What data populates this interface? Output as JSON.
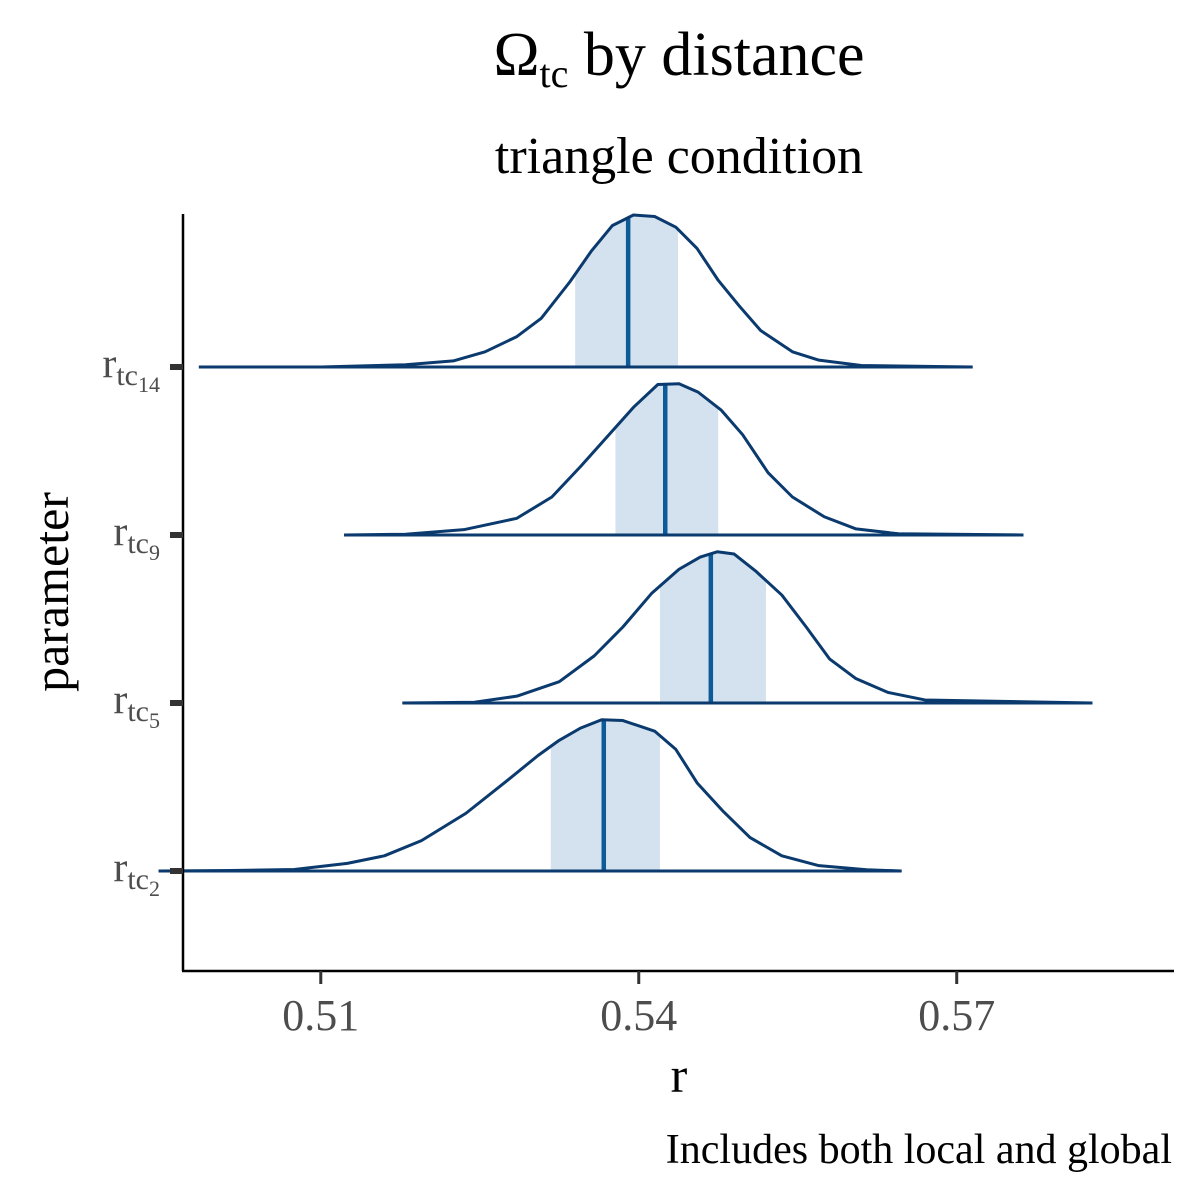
{
  "chart_data": {
    "type": "area",
    "title": {
      "main": "Ω",
      "sub": "tc",
      "rest": " by distance"
    },
    "subtitle": "triangle condition",
    "xlabel": "r",
    "ylabel": "parameter",
    "caption": "Includes both local and global",
    "x_ticks": [
      0.51,
      0.54,
      0.57
    ],
    "x_tick_labels": [
      "0.51",
      "0.54",
      "0.57"
    ],
    "xlim": [
      0.497,
      0.5905
    ],
    "grid": false,
    "legend": "none",
    "colors": {
      "outline": "#0b3a6e",
      "median": "#0d5a99",
      "interval_fill": "#d3e2ee",
      "axis": "#000000",
      "tick_label": "#4d4d4d"
    },
    "series": [
      {
        "label": {
          "base": "r",
          "sub": "tc",
          "subsub": "14"
        },
        "x_min": 0.4985,
        "x_max": 0.5715,
        "median": 0.539,
        "interval": [
          0.534,
          0.5437
        ],
        "density": [
          [
            0.4985,
            0
          ],
          [
            0.51,
            0
          ],
          [
            0.518,
            0.015
          ],
          [
            0.5225,
            0.04
          ],
          [
            0.5255,
            0.1
          ],
          [
            0.5285,
            0.2
          ],
          [
            0.5308,
            0.32
          ],
          [
            0.5335,
            0.56
          ],
          [
            0.5355,
            0.76
          ],
          [
            0.5375,
            0.93
          ],
          [
            0.5395,
            1.0
          ],
          [
            0.5415,
            0.99
          ],
          [
            0.5435,
            0.92
          ],
          [
            0.5455,
            0.78
          ],
          [
            0.5475,
            0.57
          ],
          [
            0.5495,
            0.4
          ],
          [
            0.5515,
            0.24
          ],
          [
            0.5545,
            0.1
          ],
          [
            0.557,
            0.045
          ],
          [
            0.561,
            0.01
          ],
          [
            0.5715,
            0
          ]
        ]
      },
      {
        "label": {
          "base": "r",
          "sub": "tc",
          "subsub": "9"
        },
        "x_min": 0.5122,
        "x_max": 0.5763,
        "median": 0.5425,
        "interval": [
          0.5378,
          0.5475
        ],
        "density": [
          [
            0.5122,
            0
          ],
          [
            0.518,
            0.005
          ],
          [
            0.5235,
            0.035
          ],
          [
            0.5285,
            0.11
          ],
          [
            0.5318,
            0.25
          ],
          [
            0.5345,
            0.45
          ],
          [
            0.5372,
            0.66
          ],
          [
            0.5395,
            0.84
          ],
          [
            0.5418,
            0.99
          ],
          [
            0.5438,
            0.995
          ],
          [
            0.5456,
            0.94
          ],
          [
            0.5478,
            0.82
          ],
          [
            0.5498,
            0.66
          ],
          [
            0.5522,
            0.41
          ],
          [
            0.5545,
            0.25
          ],
          [
            0.5575,
            0.12
          ],
          [
            0.5605,
            0.04
          ],
          [
            0.5645,
            0.008
          ],
          [
            0.5763,
            0
          ]
        ]
      },
      {
        "label": {
          "base": "r",
          "sub": "tc",
          "subsub": "5"
        },
        "x_min": 0.5177,
        "x_max": 0.5828,
        "median": 0.5468,
        "interval": [
          0.542,
          0.552
        ],
        "density": [
          [
            0.5177,
            0
          ],
          [
            0.5245,
            0.005
          ],
          [
            0.5285,
            0.045
          ],
          [
            0.5325,
            0.14
          ],
          [
            0.5358,
            0.31
          ],
          [
            0.5385,
            0.5
          ],
          [
            0.5412,
            0.72
          ],
          [
            0.5438,
            0.88
          ],
          [
            0.5458,
            0.96
          ],
          [
            0.5474,
            0.995
          ],
          [
            0.549,
            0.98
          ],
          [
            0.551,
            0.87
          ],
          [
            0.5535,
            0.71
          ],
          [
            0.5558,
            0.5
          ],
          [
            0.558,
            0.29
          ],
          [
            0.5605,
            0.16
          ],
          [
            0.5635,
            0.07
          ],
          [
            0.567,
            0.02
          ],
          [
            0.5828,
            0
          ]
        ]
      },
      {
        "label": {
          "base": "r",
          "sub": "tc",
          "subsub": "2"
        },
        "x_min": 0.4947,
        "x_max": 0.5648,
        "median": 0.5367,
        "interval": [
          0.5317,
          0.542
        ],
        "density": [
          [
            0.4947,
            0
          ],
          [
            0.5015,
            0.003
          ],
          [
            0.5075,
            0.01
          ],
          [
            0.5125,
            0.05
          ],
          [
            0.516,
            0.1
          ],
          [
            0.5195,
            0.2
          ],
          [
            0.5237,
            0.38
          ],
          [
            0.5275,
            0.59
          ],
          [
            0.5305,
            0.76
          ],
          [
            0.5325,
            0.86
          ],
          [
            0.5345,
            0.94
          ],
          [
            0.5365,
            0.995
          ],
          [
            0.5385,
            0.99
          ],
          [
            0.5415,
            0.92
          ],
          [
            0.5435,
            0.8
          ],
          [
            0.5455,
            0.58
          ],
          [
            0.548,
            0.39
          ],
          [
            0.5505,
            0.22
          ],
          [
            0.5535,
            0.1
          ],
          [
            0.557,
            0.035
          ],
          [
            0.5615,
            0.008
          ],
          [
            0.5648,
            0
          ]
        ]
      }
    ]
  }
}
